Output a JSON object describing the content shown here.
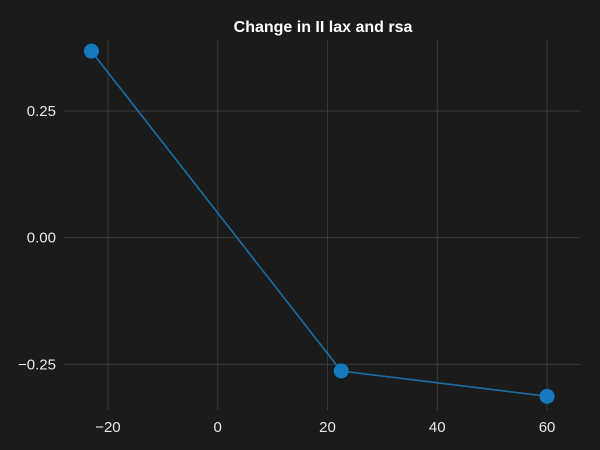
{
  "chart_data": {
    "type": "line",
    "title": "Change in II lax and rsa",
    "xlabel": "",
    "ylabel": "",
    "x": [
      -23,
      22.5,
      60
    ],
    "series": [
      {
        "values": [
          0.368,
          -0.263,
          -0.313
        ]
      }
    ],
    "xlim": [
      -28,
      66
    ],
    "ylim": [
      -0.34,
      0.39
    ],
    "xticks": [
      -20,
      0,
      20,
      40,
      60
    ],
    "xtick_labels": [
      "−20",
      "0",
      "20",
      "40",
      "60"
    ],
    "yticks": [
      0.25,
      0.0,
      -0.25
    ],
    "ytick_labels": [
      "0.25",
      "0.00",
      "−0.25"
    ],
    "grid": true,
    "legend": "none",
    "colors": {
      "background": "#1b1b1b",
      "grid": "#3a3a3a",
      "line": "#1a6fa8",
      "marker": "#1479bd",
      "text": "#e8e8e8"
    }
  }
}
